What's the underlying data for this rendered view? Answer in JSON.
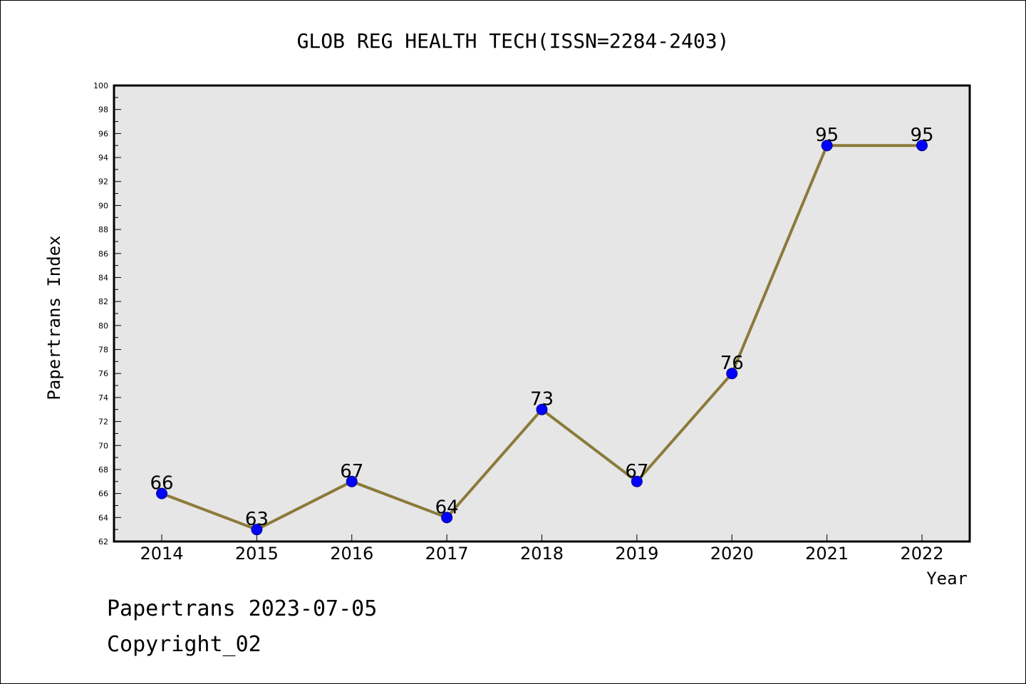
{
  "chart_data": {
    "type": "line",
    "title": "GLOB REG HEALTH TECH(ISSN=2284-2403)",
    "xlabel": "Year",
    "ylabel": "Papertrans Index",
    "categories": [
      "2014",
      "2015",
      "2016",
      "2017",
      "2018",
      "2019",
      "2020",
      "2021",
      "2022"
    ],
    "series": [
      {
        "values": [
          66,
          63,
          67,
          64,
          73,
          67,
          76,
          95,
          95
        ]
      }
    ],
    "data_labels": [
      "66",
      "63",
      "67",
      "64",
      "73",
      "67",
      "76",
      "95",
      "95"
    ],
    "ylim": [
      62,
      100
    ],
    "yticks": [
      "62",
      "64",
      "66",
      "68",
      "70",
      "72",
      "74",
      "76",
      "78",
      "80",
      "82",
      "84",
      "86",
      "88",
      "90",
      "92",
      "94",
      "96",
      "98",
      "100"
    ],
    "grid": false,
    "legend": "none",
    "colors": {
      "plot_background": "#e6e6e6",
      "line": "#8b7a3a",
      "marker_fill": "#0000ff",
      "marker_edge": "#00008b"
    }
  },
  "footer": {
    "line1": "Papertrans 2023-07-05",
    "line2": "Copyright_02"
  }
}
